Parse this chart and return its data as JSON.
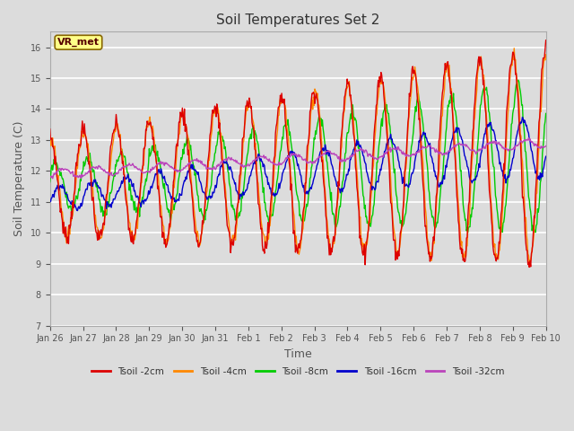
{
  "title": "Soil Temperatures Set 2",
  "xlabel": "Time",
  "ylabel": "Soil Temperature (C)",
  "ylim": [
    7.0,
    16.5
  ],
  "yticks": [
    7.0,
    8.0,
    9.0,
    10.0,
    11.0,
    12.0,
    13.0,
    14.0,
    15.0,
    16.0
  ],
  "xtick_labels": [
    "Jan 26",
    "Jan 27",
    "Jan 28",
    "Jan 29",
    "Jan 30",
    "Jan 31",
    "Feb 1",
    "Feb 2",
    "Feb 3",
    "Feb 4",
    "Feb 5",
    "Feb 6",
    "Feb 7",
    "Feb 8",
    "Feb 9",
    "Feb 10"
  ],
  "series_colors": [
    "#dd0000",
    "#ff8800",
    "#00cc00",
    "#0000cc",
    "#bb44bb"
  ],
  "series_labels": [
    "Tsoil -2cm",
    "Tsoil -4cm",
    "Tsoil -8cm",
    "Tsoil -16cm",
    "Tsoil -32cm"
  ],
  "vr_met_label": "VR_met",
  "plot_background": "#dcdcdc",
  "fig_background": "#dcdcdc",
  "grid_color": "white",
  "title_fontsize": 11,
  "axis_fontsize": 9,
  "tick_fontsize": 7,
  "n_points": 720
}
